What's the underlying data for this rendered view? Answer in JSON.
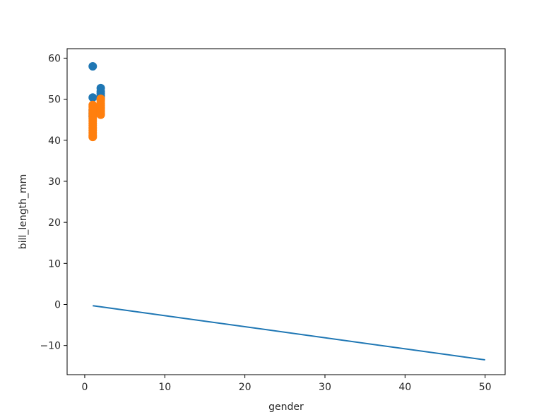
{
  "chart_data": {
    "type": "scatter",
    "title": "",
    "xlabel": "gender",
    "ylabel": "bill_length_mm",
    "xlim": [
      -2.2,
      52.5
    ],
    "ylim": [
      -17.1,
      62.3
    ],
    "xticks": [
      0,
      10,
      20,
      30,
      40,
      50
    ],
    "yticks": [
      -10,
      0,
      10,
      20,
      30,
      40,
      50,
      60
    ],
    "ytick_labels": [
      "−10",
      "0",
      "10",
      "20",
      "30",
      "40",
      "50",
      "60"
    ],
    "grid": false,
    "legend": "none",
    "series": [
      {
        "kind": "scatter",
        "color": "#1f77b4",
        "points": [
          [
            1,
            58.0
          ],
          [
            1,
            50.4
          ],
          [
            1,
            47.3
          ],
          [
            1,
            46.6
          ],
          [
            1,
            46.1
          ],
          [
            1,
            45.7
          ],
          [
            2,
            52.7
          ],
          [
            2,
            51.9
          ],
          [
            2,
            51.4
          ],
          [
            2,
            50.8
          ],
          [
            2,
            50.3
          ],
          [
            2,
            49.9
          ]
        ]
      },
      {
        "kind": "scatter",
        "color": "#ff7f0e",
        "points": [
          [
            1,
            48.6
          ],
          [
            1,
            48.1
          ],
          [
            1,
            47.5
          ],
          [
            1,
            46.9
          ],
          [
            1,
            46.4
          ],
          [
            1,
            45.8
          ],
          [
            1,
            45.2
          ],
          [
            1,
            44.7
          ],
          [
            1,
            44.1
          ],
          [
            1,
            43.6
          ],
          [
            1,
            43.0
          ],
          [
            1,
            42.4
          ],
          [
            1,
            41.8
          ],
          [
            1,
            41.2
          ],
          [
            1,
            40.8
          ],
          [
            2,
            50.1
          ],
          [
            2,
            49.6
          ],
          [
            2,
            49.0
          ],
          [
            2,
            48.5
          ],
          [
            2,
            48.0
          ],
          [
            2,
            47.6
          ],
          [
            2,
            47.1
          ],
          [
            2,
            46.6
          ],
          [
            2,
            46.2
          ]
        ]
      },
      {
        "kind": "line",
        "color": "#1f77b4",
        "points": [
          [
            1,
            -0.3
          ],
          [
            50,
            -13.5
          ]
        ]
      }
    ]
  }
}
